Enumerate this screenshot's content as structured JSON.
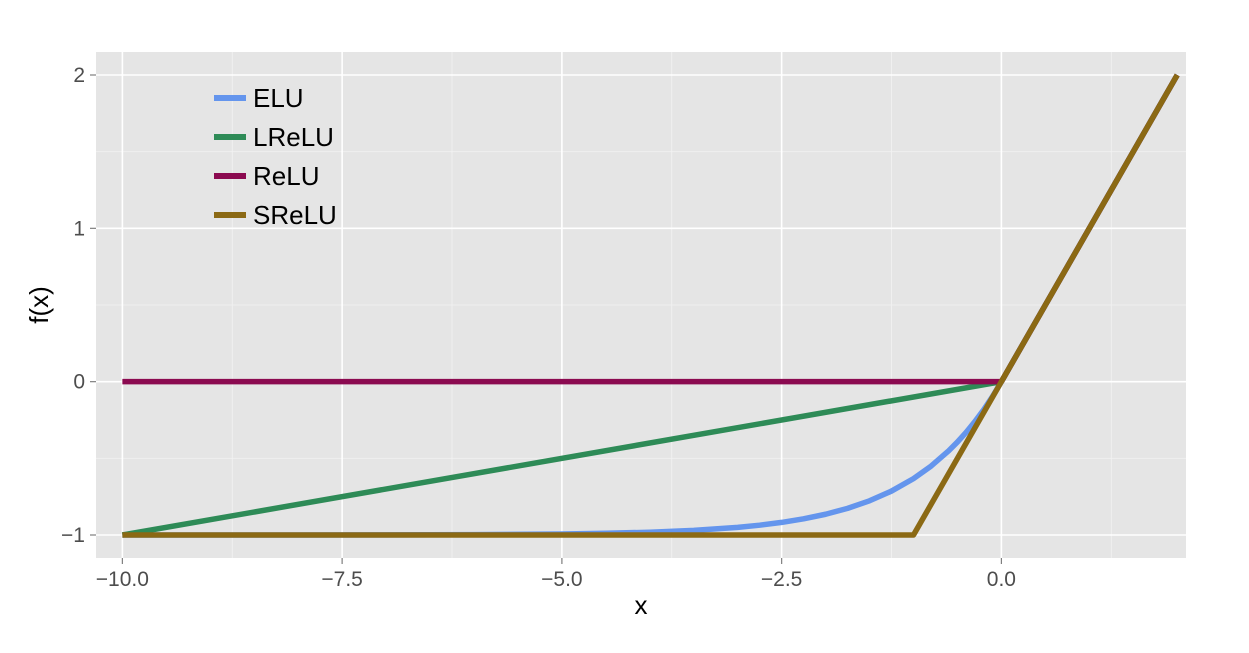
{
  "chart_data": {
    "type": "line",
    "title": "",
    "xlabel": "x",
    "ylabel": "f(x)",
    "xlim": [
      -10.3,
      2.1
    ],
    "ylim": [
      -1.15,
      2.15
    ],
    "x_ticks": [
      -10,
      -7.5,
      -5,
      -2.5,
      0
    ],
    "x_tick_labels": [
      "−10.0",
      "−7.5",
      "−5.0",
      "−2.5",
      "0.0"
    ],
    "y_ticks": [
      -1,
      0,
      1,
      2
    ],
    "y_tick_labels": [
      "−1",
      "0",
      "1",
      "2"
    ],
    "grid": true,
    "legend_position": "top-left",
    "x_range": [
      -10,
      2
    ],
    "series": [
      {
        "name": "ELU",
        "color": "#6495ed",
        "x": [
          -10,
          -9,
          -8,
          -7,
          -6,
          -5,
          -4.5,
          -4,
          -3.5,
          -3,
          -2.75,
          -2.5,
          -2.25,
          -2,
          -1.75,
          -1.5,
          -1.25,
          -1,
          -0.8,
          -0.6,
          -0.5,
          -0.4,
          -0.3,
          -0.2,
          -0.1,
          0,
          0.5,
          1,
          1.5,
          2
        ],
        "y": [
          -1,
          -0.9999,
          -0.9997,
          -0.9991,
          -0.9975,
          -0.9933,
          -0.9889,
          -0.9817,
          -0.9698,
          -0.9502,
          -0.9361,
          -0.9179,
          -0.8946,
          -0.8647,
          -0.8262,
          -0.7769,
          -0.7135,
          -0.6321,
          -0.5507,
          -0.4512,
          -0.3935,
          -0.3297,
          -0.2592,
          -0.1813,
          -0.0952,
          0,
          0.5,
          1,
          1.5,
          2
        ]
      },
      {
        "name": "LReLU",
        "color": "#2e8b57",
        "x": [
          -10,
          0,
          2
        ],
        "y": [
          -1,
          0,
          2
        ]
      },
      {
        "name": "ReLU",
        "color": "#8b0a50",
        "x": [
          -10,
          0,
          2
        ],
        "y": [
          0,
          0,
          2
        ]
      },
      {
        "name": "SReLU",
        "color": "#8b6914",
        "x": [
          -10,
          -1,
          0,
          2
        ],
        "y": [
          -1,
          -1,
          0,
          2
        ]
      }
    ]
  }
}
